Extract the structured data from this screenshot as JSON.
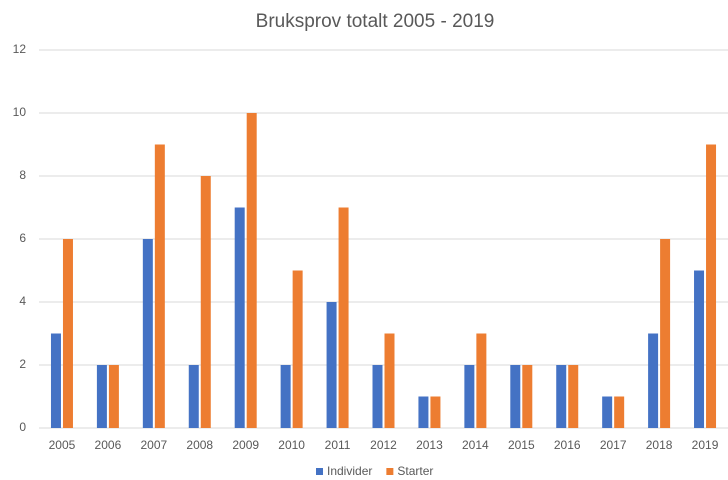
{
  "chart_data": {
    "type": "bar",
    "title": "Bruksprov totalt 2005 - 2019",
    "categories": [
      "2005",
      "2006",
      "2007",
      "2008",
      "2009",
      "2010",
      "2011",
      "2012",
      "2013",
      "2014",
      "2015",
      "2016",
      "2017",
      "2018",
      "2019"
    ],
    "series": [
      {
        "name": "Individer",
        "color": "#4472c4",
        "values": [
          3,
          2,
          6,
          2,
          7,
          2,
          4,
          2,
          1,
          2,
          2,
          2,
          1,
          3,
          5
        ]
      },
      {
        "name": "Starter",
        "color": "#ed7d31",
        "values": [
          6,
          2,
          9,
          8,
          10,
          5,
          7,
          3,
          1,
          3,
          2,
          2,
          1,
          6,
          9
        ]
      }
    ],
    "ylim": [
      0,
      12
    ],
    "yticks": [
      0,
      2,
      4,
      6,
      8,
      10,
      12
    ],
    "grid": true,
    "legend": "bottom"
  }
}
